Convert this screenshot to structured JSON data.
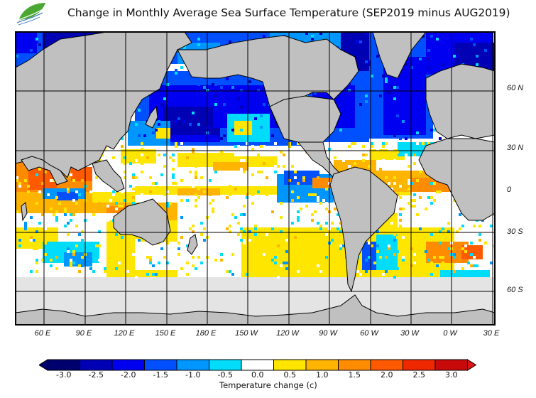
{
  "title": "Change in Monthly Average Sea Surface Temperature (SEP2019 minus AUG2019)",
  "logo": {
    "icon": "leaf-logo-icon",
    "colors": [
      "#3a9a2a",
      "#7ac943",
      "#2a6fb8"
    ]
  },
  "map": {
    "land_color": "#c0c0c0",
    "ice_color": "#e4e4e4",
    "border_color": "#000000",
    "grid_color": "#000000",
    "lon_labels": [
      "60 E",
      "90 E",
      "120 E",
      "150 E",
      "180 E",
      "150 W",
      "120 W",
      "90 W",
      "60 W",
      "30 W",
      "0 W",
      "30 E"
    ],
    "lat_labels": [
      "60 N",
      "30 N",
      "0",
      "30 S",
      "60 S"
    ]
  },
  "colorbar": {
    "label": "Temperature change  (c)",
    "ticks": [
      "-3.0",
      "-2.5",
      "-2.0",
      "-1.5",
      "-1.0",
      "-0.5",
      "0.0",
      "0.5",
      "1.0",
      "1.5",
      "2.0",
      "2.5",
      "3.0"
    ],
    "colors": [
      "#00006e",
      "#0000b4",
      "#0000f0",
      "#0050ff",
      "#0096ff",
      "#00dcfa",
      "#ffffff",
      "#ffe600",
      "#ffb400",
      "#ff8c00",
      "#ff5a00",
      "#f02800",
      "#c80a0a"
    ],
    "under_color": "#00006e",
    "over_color": "#dc1414"
  }
}
